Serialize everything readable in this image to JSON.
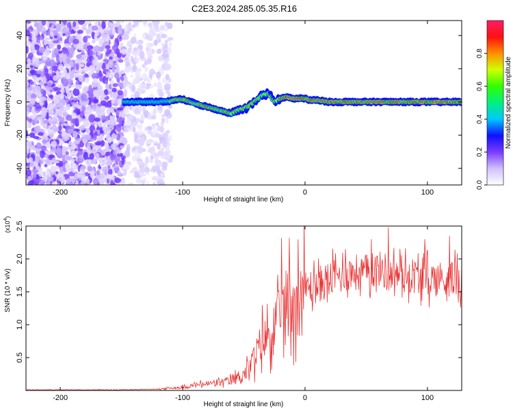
{
  "title": "C2E3.2024.285.05.35.R16",
  "chart_data": [
    {
      "type": "heatmap",
      "xlabel": "Height of straight line (km)",
      "ylabel": "Frequency (Hz)",
      "xlim": [
        -228,
        128
      ],
      "ylim": [
        -50,
        49
      ],
      "xticks": [
        -200,
        -100,
        0,
        100
      ],
      "yticks": [
        -40,
        -20,
        0,
        20,
        40
      ],
      "noise_region_x": [
        -228,
        -110
      ],
      "noise_dense_until_x": -148,
      "ridge": {
        "x": [
          -148,
          -140,
          -130,
          -120,
          -110,
          -105,
          -100,
          -95,
          -90,
          -85,
          -80,
          -75,
          -70,
          -65,
          -60,
          -55,
          -50,
          -45,
          -40,
          -35,
          -30,
          -25,
          -20,
          -15,
          -10,
          -5,
          0,
          5,
          10,
          20,
          40,
          60,
          80,
          100,
          128
        ],
        "y": [
          0,
          0,
          0,
          0,
          0.5,
          1.5,
          1.5,
          0.5,
          -1,
          -2,
          -3,
          -4,
          -5,
          -6,
          -7,
          -5,
          -4,
          -2,
          1,
          4,
          5,
          0,
          2,
          3,
          2,
          2,
          2,
          1,
          1,
          0,
          0,
          0,
          0,
          0,
          0
        ]
      },
      "colorbar": {
        "label": "Normalized spectral amplitude",
        "ticks": [
          "0.0",
          "0.2",
          "0.4",
          "0.6",
          "0.8"
        ],
        "tick_values": [
          0,
          0.2,
          0.4,
          0.6,
          0.8
        ],
        "range": [
          0,
          1
        ],
        "colors": [
          "#ffffff",
          "#d0c0ff",
          "#7a3cff",
          "#1010ff",
          "#00c8ff",
          "#00f080",
          "#30ff00",
          "#d0ff00",
          "#ff9000",
          "#ff1010",
          "#ff1e64"
        ]
      }
    },
    {
      "type": "line",
      "xlabel": "Height of straight line (km)",
      "ylabel": "SNR (10 * v/v)",
      "y_multiplier": "(x10",
      "y_multiplier_exp": "4",
      "y_multiplier_close": ")",
      "xlim": [
        -228,
        128
      ],
      "ylim": [
        0,
        2.5
      ],
      "xticks": [
        -200,
        -100,
        0,
        100
      ],
      "yticks": [
        "0.5",
        "1.0",
        "1.5",
        "2.0",
        "2.5"
      ],
      "ytick_values": [
        0.5,
        1.0,
        1.5,
        2.0,
        2.5
      ],
      "color": "#e83030",
      "envelope": {
        "x": [
          -228,
          -150,
          -120,
          -100,
          -90,
          -80,
          -70,
          -60,
          -55,
          -50,
          -45,
          -40,
          -35,
          -30,
          -25,
          -20,
          -15,
          -10,
          -5,
          0,
          10,
          20,
          30,
          40,
          50,
          60,
          70,
          80,
          90,
          100,
          110,
          120,
          128
        ],
        "y": [
          0.01,
          0.01,
          0.02,
          0.05,
          0.08,
          0.1,
          0.12,
          0.15,
          0.2,
          0.25,
          0.35,
          0.55,
          0.75,
          0.85,
          0.95,
          1.1,
          1.3,
          1.35,
          1.45,
          1.55,
          1.6,
          1.7,
          1.75,
          1.8,
          1.8,
          1.85,
          1.8,
          1.75,
          1.75,
          1.7,
          1.7,
          1.7,
          1.7
        ]
      },
      "spikes": [
        {
          "x": -47,
          "y": 0.45
        },
        {
          "x": -35,
          "y": 1.3
        },
        {
          "x": -19,
          "y": 2.32
        },
        {
          "x": -13,
          "y": 2.32
        },
        {
          "x": 3,
          "y": 1.52
        },
        {
          "x": 33,
          "y": 2.15
        },
        {
          "x": 54,
          "y": 2.3
        },
        {
          "x": 68,
          "y": 2.48
        },
        {
          "x": 98,
          "y": 2.3
        },
        {
          "x": 118,
          "y": 2.35
        }
      ]
    }
  ]
}
